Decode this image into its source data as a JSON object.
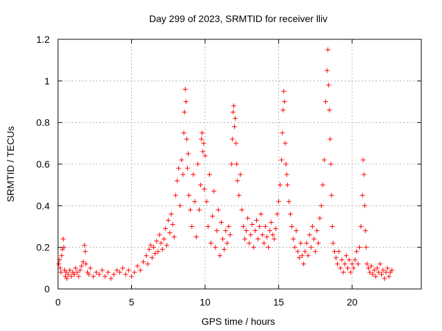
{
  "chart_data": {
    "type": "scatter",
    "title": "Day 299 of 2023, SRMTID for receiver lliv",
    "xlabel": "GPS time / hours",
    "ylabel": "SRMTID / TECUs",
    "xlim": [
      0,
      24.7
    ],
    "ylim": [
      0,
      1.2
    ],
    "x_ticks": [
      0,
      5,
      10,
      15,
      20
    ],
    "x_tick_labels": [
      "0",
      "5",
      "10",
      "15",
      "20"
    ],
    "y_ticks": [
      0,
      0.2,
      0.4,
      0.6,
      0.8,
      1.0,
      1.2
    ],
    "y_tick_labels": [
      "0",
      "0.2",
      "0.4",
      "0.6",
      "0.8",
      "1",
      "1.2"
    ],
    "grid": true,
    "marker": "plus",
    "color": "#ff0000",
    "series": [
      {
        "name": "SRMTID",
        "x": [
          0.05,
          0.1,
          0.15,
          0.2,
          0.25,
          0.3,
          0.35,
          0.4,
          0.45,
          0.5,
          0.55,
          0.6,
          0.7,
          0.8,
          0.9,
          1.0,
          1.1,
          1.2,
          1.3,
          1.4,
          1.5,
          1.6,
          1.7,
          1.8,
          1.85,
          1.9,
          2.0,
          2.1,
          2.2,
          2.4,
          2.6,
          2.8,
          3.0,
          3.2,
          3.4,
          3.6,
          3.8,
          4.0,
          4.2,
          4.4,
          4.6,
          4.8,
          5.0,
          5.2,
          5.4,
          5.6,
          5.8,
          6.0,
          6.1,
          6.2,
          6.3,
          6.4,
          6.5,
          6.6,
          6.7,
          6.8,
          6.9,
          7.0,
          7.1,
          7.2,
          7.3,
          7.4,
          7.5,
          7.6,
          7.7,
          7.8,
          7.9,
          8.0,
          8.1,
          8.2,
          8.3,
          8.4,
          8.5,
          8.55,
          8.6,
          8.65,
          8.7,
          8.75,
          8.8,
          8.85,
          8.9,
          9.0,
          9.1,
          9.2,
          9.3,
          9.4,
          9.5,
          9.6,
          9.7,
          9.75,
          9.8,
          9.85,
          9.9,
          9.95,
          10.0,
          10.1,
          10.2,
          10.3,
          10.4,
          10.5,
          10.6,
          10.7,
          10.8,
          10.9,
          11.0,
          11.1,
          11.2,
          11.3,
          11.4,
          11.5,
          11.6,
          11.7,
          11.8,
          11.85,
          11.9,
          11.95,
          12.0,
          12.05,
          12.1,
          12.15,
          12.2,
          12.3,
          12.4,
          12.5,
          12.6,
          12.7,
          12.8,
          12.9,
          13.0,
          13.1,
          13.2,
          13.3,
          13.4,
          13.5,
          13.6,
          13.7,
          13.8,
          13.9,
          14.0,
          14.1,
          14.2,
          14.3,
          14.4,
          14.5,
          14.6,
          14.7,
          14.8,
          14.9,
          15.0,
          15.1,
          15.2,
          15.25,
          15.3,
          15.35,
          15.4,
          15.45,
          15.5,
          15.55,
          15.6,
          15.7,
          15.8,
          15.9,
          16.0,
          16.1,
          16.2,
          16.3,
          16.4,
          16.5,
          16.6,
          16.7,
          16.8,
          16.9,
          17.0,
          17.1,
          17.2,
          17.3,
          17.4,
          17.5,
          17.6,
          17.7,
          17.8,
          17.9,
          18.0,
          18.1,
          18.2,
          18.3,
          18.35,
          18.4,
          18.45,
          18.5,
          18.55,
          18.6,
          18.65,
          18.7,
          18.8,
          18.9,
          19.0,
          19.1,
          19.2,
          19.3,
          19.4,
          19.5,
          19.6,
          19.7,
          19.8,
          19.9,
          20.0,
          20.1,
          20.2,
          20.3,
          20.4,
          20.5,
          20.6,
          20.7,
          20.75,
          20.8,
          20.85,
          20.9,
          20.95,
          21.0,
          21.1,
          21.2,
          21.3,
          21.4,
          21.5,
          21.6,
          21.7,
          21.8,
          21.9,
          22.0,
          22.1,
          22.2,
          22.3,
          22.4,
          22.5,
          22.6,
          22.7
        ],
        "y": [
          0.12,
          0.14,
          0.1,
          0.08,
          0.16,
          0.19,
          0.24,
          0.2,
          0.09,
          0.06,
          0.08,
          0.05,
          0.07,
          0.09,
          0.06,
          0.08,
          0.07,
          0.1,
          0.08,
          0.06,
          0.09,
          0.11,
          0.13,
          0.21,
          0.18,
          0.12,
          0.08,
          0.07,
          0.1,
          0.06,
          0.08,
          0.07,
          0.09,
          0.06,
          0.08,
          0.05,
          0.07,
          0.09,
          0.08,
          0.1,
          0.07,
          0.09,
          0.06,
          0.08,
          0.11,
          0.09,
          0.13,
          0.16,
          0.12,
          0.19,
          0.21,
          0.15,
          0.2,
          0.17,
          0.23,
          0.18,
          0.26,
          0.22,
          0.19,
          0.24,
          0.29,
          0.21,
          0.33,
          0.27,
          0.36,
          0.31,
          0.25,
          0.45,
          0.52,
          0.58,
          0.4,
          0.62,
          0.55,
          0.75,
          0.85,
          0.96,
          0.9,
          0.72,
          0.58,
          0.65,
          0.45,
          0.38,
          0.3,
          0.55,
          0.42,
          0.25,
          0.6,
          0.38,
          0.5,
          0.72,
          0.75,
          0.66,
          0.7,
          0.48,
          0.64,
          0.42,
          0.3,
          0.55,
          0.22,
          0.35,
          0.47,
          0.2,
          0.28,
          0.38,
          0.16,
          0.32,
          0.24,
          0.19,
          0.28,
          0.22,
          0.3,
          0.26,
          0.6,
          0.72,
          0.85,
          0.88,
          0.78,
          0.82,
          0.7,
          0.6,
          0.52,
          0.45,
          0.55,
          0.38,
          0.3,
          0.24,
          0.28,
          0.34,
          0.22,
          0.26,
          0.31,
          0.2,
          0.28,
          0.33,
          0.24,
          0.3,
          0.36,
          0.26,
          0.22,
          0.3,
          0.25,
          0.2,
          0.28,
          0.32,
          0.26,
          0.24,
          0.29,
          0.36,
          0.42,
          0.5,
          0.62,
          0.75,
          0.86,
          0.95,
          0.9,
          0.7,
          0.6,
          0.55,
          0.5,
          0.42,
          0.36,
          0.3,
          0.24,
          0.2,
          0.28,
          0.18,
          0.15,
          0.22,
          0.16,
          0.12,
          0.18,
          0.22,
          0.16,
          0.26,
          0.2,
          0.3,
          0.24,
          0.18,
          0.28,
          0.22,
          0.34,
          0.4,
          0.5,
          0.62,
          0.9,
          1.05,
          1.15,
          0.98,
          0.86,
          0.72,
          0.6,
          0.45,
          0.3,
          0.22,
          0.18,
          0.15,
          0.12,
          0.18,
          0.1,
          0.14,
          0.08,
          0.12,
          0.16,
          0.1,
          0.14,
          0.08,
          0.12,
          0.1,
          0.14,
          0.18,
          0.12,
          0.2,
          0.3,
          0.45,
          0.62,
          0.55,
          0.4,
          0.28,
          0.2,
          0.12,
          0.1,
          0.08,
          0.11,
          0.07,
          0.09,
          0.06,
          0.1,
          0.08,
          0.12,
          0.07,
          0.09,
          0.05,
          0.08,
          0.1,
          0.06,
          0.08,
          0.09
        ]
      }
    ]
  }
}
